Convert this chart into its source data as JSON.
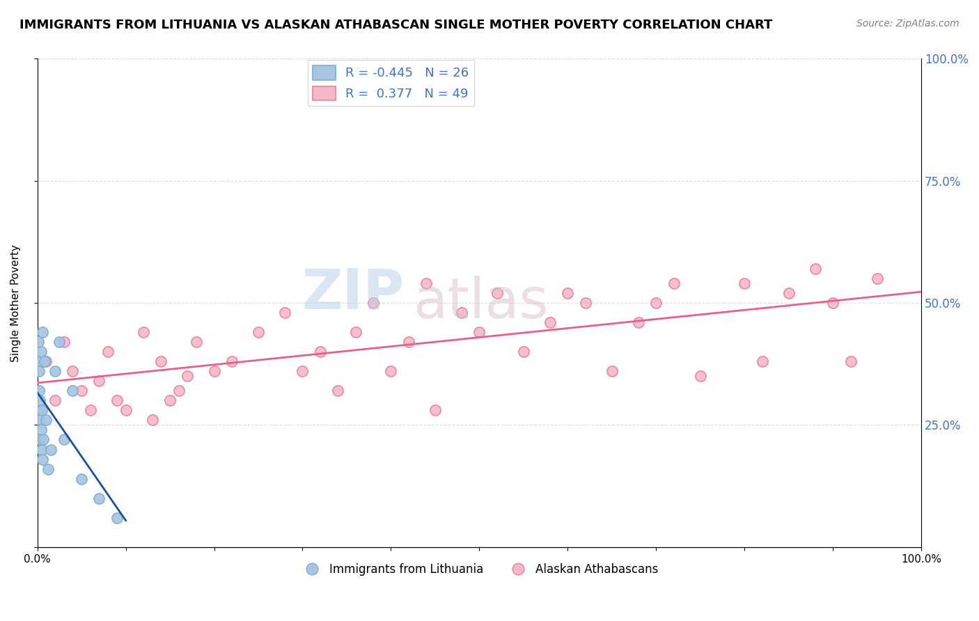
{
  "title": "IMMIGRANTS FROM LITHUANIA VS ALASKAN ATHABASCAN SINGLE MOTHER POVERTY CORRELATION CHART",
  "source": "Source: ZipAtlas.com",
  "ylabel": "Single Mother Poverty",
  "watermark_zip": "ZIP",
  "watermark_atlas": "atlas",
  "blue_R": -0.445,
  "blue_N": 26,
  "pink_R": 0.377,
  "pink_N": 49,
  "blue_label": "Immigrants from Lithuania",
  "pink_label": "Alaskan Athabascans",
  "blue_color": "#a8c4e0",
  "blue_edge": "#7aafd4",
  "pink_color": "#f4b8c8",
  "pink_edge": "#e8839a",
  "blue_line_color": "#1a4fa0",
  "pink_line_color": "#e8608a",
  "xlim": [
    0.0,
    1.0
  ],
  "ylim": [
    0.0,
    1.0
  ],
  "ytick_values": [
    0.0,
    0.25,
    0.5,
    0.75,
    1.0
  ],
  "bg_color": "#ffffff",
  "grid_color": "#d0d0d0",
  "right_tick_color": "#4472c4",
  "title_fontsize": 13,
  "axis_label_fontsize": 11,
  "legend_fontsize": 13,
  "marker_size": 120,
  "blue_x": [
    0.001,
    0.001,
    0.002,
    0.002,
    0.002,
    0.003,
    0.003,
    0.003,
    0.004,
    0.004,
    0.005,
    0.005,
    0.006,
    0.006,
    0.007,
    0.008,
    0.01,
    0.012,
    0.015,
    0.02,
    0.025,
    0.03,
    0.04,
    0.05,
    0.07,
    0.09
  ],
  "blue_y": [
    0.42,
    0.38,
    0.36,
    0.32,
    0.28,
    0.3,
    0.26,
    0.22,
    0.4,
    0.24,
    0.28,
    0.2,
    0.44,
    0.18,
    0.22,
    0.38,
    0.26,
    0.16,
    0.2,
    0.36,
    0.42,
    0.22,
    0.32,
    0.14,
    0.1,
    0.06
  ],
  "pink_x": [
    0.01,
    0.02,
    0.03,
    0.04,
    0.05,
    0.06,
    0.07,
    0.08,
    0.09,
    0.1,
    0.12,
    0.13,
    0.14,
    0.15,
    0.16,
    0.17,
    0.18,
    0.2,
    0.22,
    0.25,
    0.28,
    0.3,
    0.32,
    0.34,
    0.36,
    0.38,
    0.4,
    0.42,
    0.44,
    0.45,
    0.48,
    0.5,
    0.52,
    0.55,
    0.58,
    0.6,
    0.62,
    0.65,
    0.68,
    0.7,
    0.72,
    0.75,
    0.8,
    0.82,
    0.85,
    0.88,
    0.9,
    0.92,
    0.95
  ],
  "pink_y": [
    0.38,
    0.3,
    0.42,
    0.36,
    0.32,
    0.28,
    0.34,
    0.4,
    0.3,
    0.28,
    0.44,
    0.26,
    0.38,
    0.3,
    0.32,
    0.35,
    0.42,
    0.36,
    0.38,
    0.44,
    0.48,
    0.36,
    0.4,
    0.32,
    0.44,
    0.5,
    0.36,
    0.42,
    0.54,
    0.28,
    0.48,
    0.44,
    0.52,
    0.4,
    0.46,
    0.52,
    0.5,
    0.36,
    0.46,
    0.5,
    0.54,
    0.35,
    0.54,
    0.38,
    0.52,
    0.57,
    0.5,
    0.38,
    0.55
  ]
}
